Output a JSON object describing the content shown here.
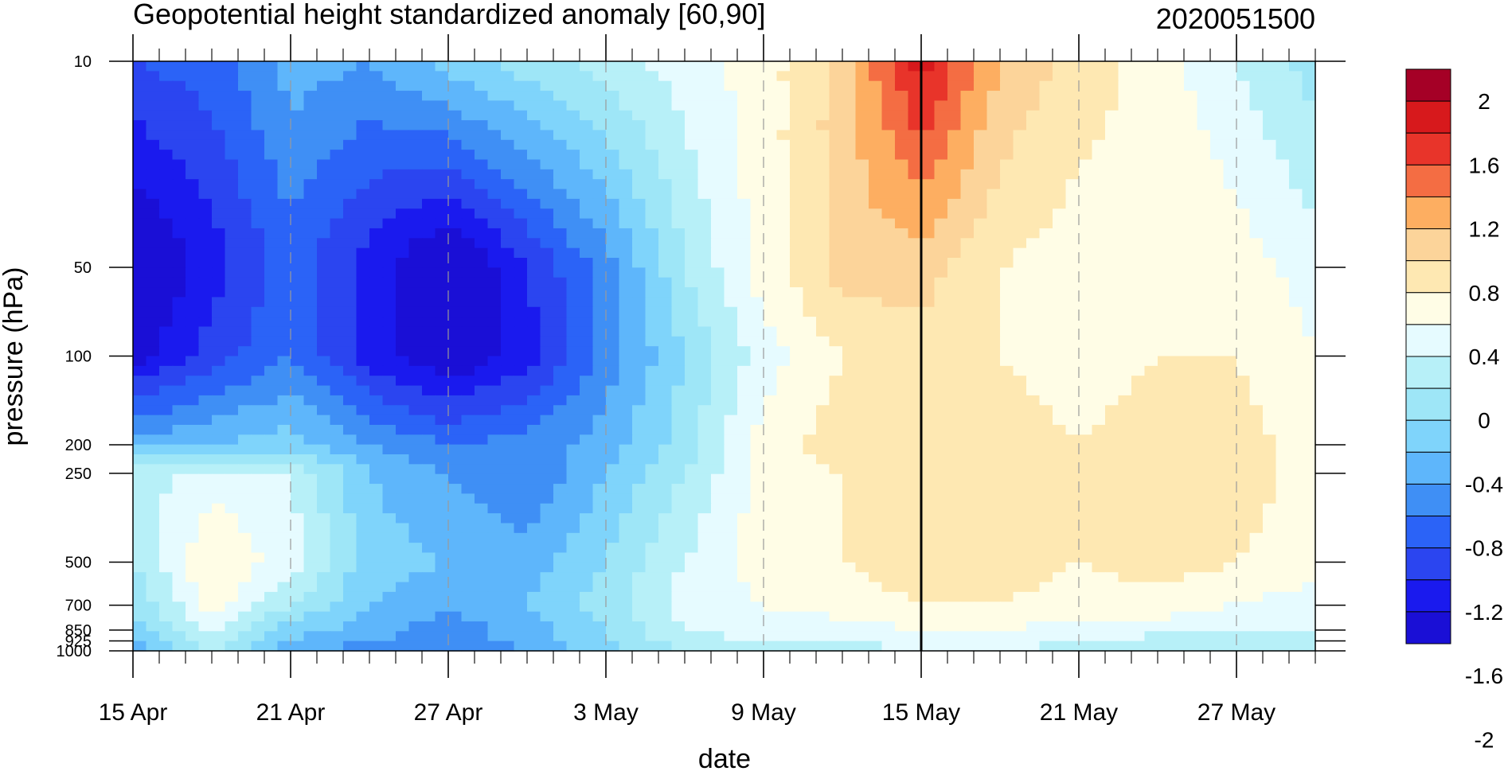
{
  "chart_data": {
    "type": "heatmap",
    "title": "Geopotential height standardized anomaly [60,90]",
    "date_label": "2020051500",
    "xlabel": "date",
    "ylabel": "pressure (hPa)",
    "x_ticks": [
      "15 Apr",
      "21 Apr",
      "27 Apr",
      "3 May",
      "9 May",
      "15 May",
      "21 May",
      "27 May"
    ],
    "x_range_days": [
      0,
      45
    ],
    "current_day": 30,
    "y_levels": [
      10,
      50,
      100,
      200,
      250,
      500,
      700,
      850,
      925,
      1000
    ],
    "y_tick_labels": [
      "10",
      "50",
      "100",
      "200",
      "250",
      "500",
      "700",
      "850",
      "925",
      "1000"
    ],
    "y_scale": "log",
    "colorbar": {
      "labels": [
        "2",
        "1.6",
        "1.2",
        "0.8",
        "0.4",
        "0",
        "-0.4",
        "-0.8",
        "-1.2",
        "-1.6",
        "-2"
      ],
      "colors": [
        "#a50026",
        "#d7191c",
        "#e8342a",
        "#f46d43",
        "#fdae61",
        "#fcd49a",
        "#fee8b2",
        "#fffde6",
        "#e6fbff",
        "#b7f0f8",
        "#9ee6f7",
        "#7fd4fb",
        "#5eb6fb",
        "#3f8ff5",
        "#2b63f7",
        "#2b45f0",
        "#1a1aee",
        "#1a0fd6"
      ],
      "levels": [
        2.0,
        1.8,
        1.6,
        1.4,
        1.2,
        1.0,
        0.8,
        0.6,
        0.4,
        0.2,
        0.0,
        -0.2,
        -0.4,
        -0.6,
        -0.8,
        -1.0,
        -1.2,
        -1.4,
        -1.6,
        -1.8,
        -2.0
      ]
    },
    "grid": true,
    "anomaly_grid": {
      "days": [
        0,
        3,
        6,
        9,
        12,
        15,
        18,
        21,
        24,
        27,
        30,
        33,
        36,
        39,
        42,
        45
      ],
      "levels": [
        10,
        50,
        100,
        200,
        250,
        500,
        700,
        850,
        925,
        1000
      ],
      "values": [
        [
          -1.0,
          -0.9,
          -0.5,
          -0.6,
          -0.3,
          -0.1,
          0.1,
          0.3,
          0.5,
          0.9,
          1.7,
          1.0,
          0.7,
          0.5,
          0.2,
          -0.1
        ],
        [
          -1.7,
          -1.3,
          -0.9,
          -1.3,
          -1.7,
          -1.2,
          -0.7,
          0.0,
          0.5,
          0.9,
          0.9,
          0.6,
          0.5,
          0.6,
          0.5,
          0.3
        ],
        [
          -1.5,
          -1.1,
          -0.8,
          -1.3,
          -1.6,
          -1.3,
          -0.7,
          -0.2,
          0.3,
          0.6,
          0.7,
          0.6,
          0.5,
          0.6,
          0.6,
          0.4
        ],
        [
          -0.5,
          -0.4,
          -0.3,
          -0.6,
          -0.8,
          -0.7,
          -0.5,
          -0.1,
          0.5,
          0.7,
          0.8,
          0.7,
          0.6,
          0.7,
          0.7,
          0.5
        ],
        [
          0.1,
          0.3,
          0.2,
          -0.4,
          -0.6,
          -0.8,
          -0.4,
          0.0,
          0.5,
          0.6,
          0.7,
          0.7,
          0.6,
          0.7,
          0.7,
          0.5
        ],
        [
          0.0,
          0.6,
          0.3,
          -0.3,
          -0.4,
          -0.5,
          -0.2,
          0.2,
          0.5,
          0.6,
          0.7,
          0.7,
          0.6,
          0.7,
          0.6,
          0.5
        ],
        [
          -0.2,
          0.5,
          0.0,
          -0.4,
          -0.6,
          -0.4,
          -0.1,
          0.3,
          0.4,
          0.5,
          0.6,
          0.6,
          0.5,
          0.5,
          0.4,
          0.3
        ],
        [
          -0.3,
          0.2,
          -0.3,
          -0.5,
          -0.7,
          -0.5,
          -0.2,
          0.2,
          0.3,
          0.3,
          0.4,
          0.4,
          0.3,
          0.3,
          0.2,
          0.2
        ],
        [
          -0.4,
          0.1,
          -0.4,
          -0.6,
          -0.7,
          -0.5,
          -0.2,
          0.1,
          0.2,
          0.2,
          0.3,
          0.3,
          0.2,
          0.1,
          0.1,
          0.1
        ],
        [
          -0.5,
          0.0,
          -0.5,
          -0.7,
          -0.8,
          -0.6,
          -0.3,
          0.0,
          0.1,
          0.1,
          0.2,
          0.2,
          0.1,
          0.0,
          0.0,
          0.0
        ]
      ]
    }
  }
}
